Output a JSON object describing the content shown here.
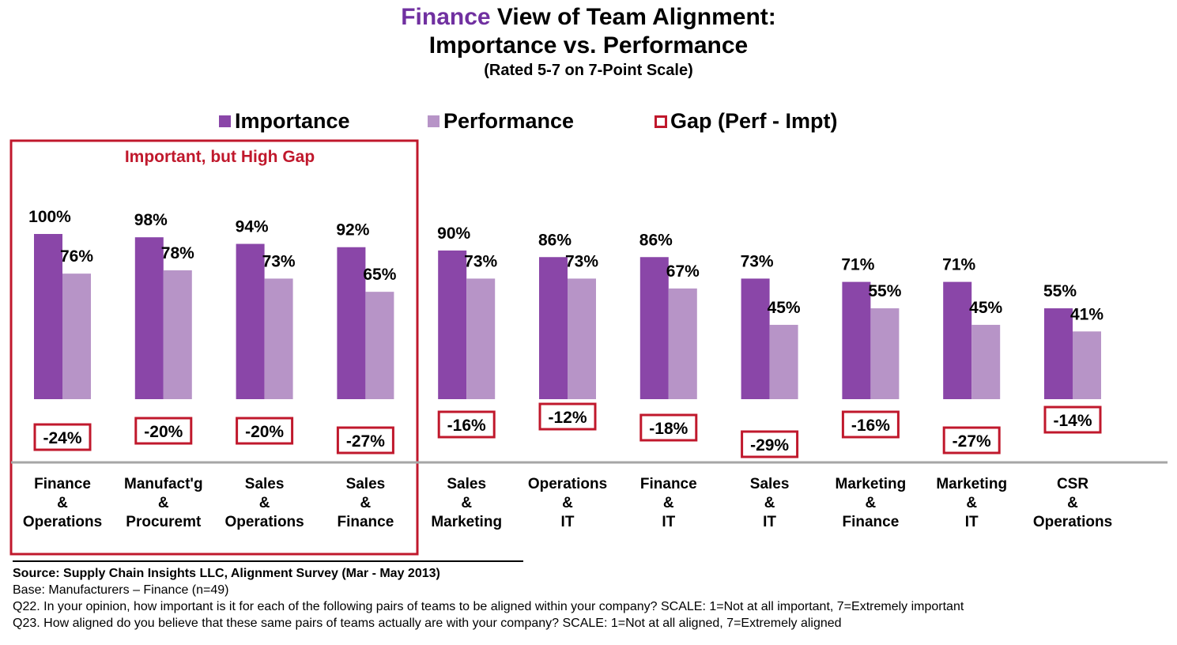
{
  "title": {
    "highlight": "Finance",
    "line1_rest": " View of Team Alignment:",
    "line2": "Importance vs. Performance",
    "line3": "(Rated 5-7 on 7-Point Scale)"
  },
  "colors": {
    "importance": "#8a46a8",
    "performance": "#b794c7",
    "gap_border": "#c0182c",
    "callout_text": "#c0182c",
    "title_highlight": "#7030a0",
    "axis": "#a6a6a6"
  },
  "callout": "Important, but High Gap",
  "chart_data": {
    "type": "bar",
    "categories": [
      [
        "Finance",
        "&",
        "Operations"
      ],
      [
        "Manufact'g",
        "&",
        "Procuremt"
      ],
      [
        "Sales",
        "&",
        "Operations"
      ],
      [
        "Sales",
        "&",
        "Finance"
      ],
      [
        "Sales",
        "&",
        "Marketing"
      ],
      [
        "Operations",
        "&",
        "IT"
      ],
      [
        "Finance",
        "&",
        "IT"
      ],
      [
        "Sales",
        "&",
        "IT"
      ],
      [
        "Marketing",
        "&",
        "Finance"
      ],
      [
        "Marketing",
        "&",
        "IT"
      ],
      [
        "CSR",
        "&",
        "Operations"
      ]
    ],
    "series": [
      {
        "name": "Importance",
        "values": [
          100,
          98,
          94,
          92,
          90,
          86,
          86,
          73,
          71,
          71,
          55
        ],
        "labels": [
          "100%",
          "98%",
          "94%",
          "92%",
          "90%",
          "86%",
          "86%",
          "73%",
          "71%",
          "71%",
          "55%"
        ]
      },
      {
        "name": "Performance",
        "values": [
          76,
          78,
          73,
          65,
          73,
          73,
          67,
          45,
          55,
          45,
          41
        ],
        "labels": [
          "76%",
          "78%",
          "73%",
          "65%",
          "73%",
          "73%",
          "67%",
          "45%",
          "55%",
          "45%",
          "41%"
        ]
      },
      {
        "name": "Gap (Perf - Impt)",
        "values": [
          -24,
          -20,
          -20,
          -27,
          -16,
          -12,
          -18,
          -29,
          -16,
          -27,
          -14
        ],
        "labels": [
          "-24%",
          "-20%",
          "-20%",
          "-27%",
          "-16%",
          "-12%",
          "-18%",
          "-29%",
          "-16%",
          "-27%",
          "-14%"
        ]
      }
    ],
    "legend": [
      "Importance",
      "Performance",
      "Gap (Perf - Impt)"
    ],
    "legend_position": "top",
    "ylim": [
      0,
      100
    ],
    "grid": false
  },
  "footer": {
    "source": "Source:  Supply Chain Insights LLC, Alignment Survey  (Mar - May 2013)",
    "base": "Base:  Manufacturers   – Finance (n=49)",
    "q22": "Q22. In your opinion, how important is it for each of the following pairs of teams to be aligned within your company?  SCALE:  1=Not at all important, 7=Extremely important",
    "q23": "Q23. How aligned do you believe that these same pairs of teams actually are with your company?  SCALE: 1=Not at all aligned, 7=Extremely aligned"
  }
}
